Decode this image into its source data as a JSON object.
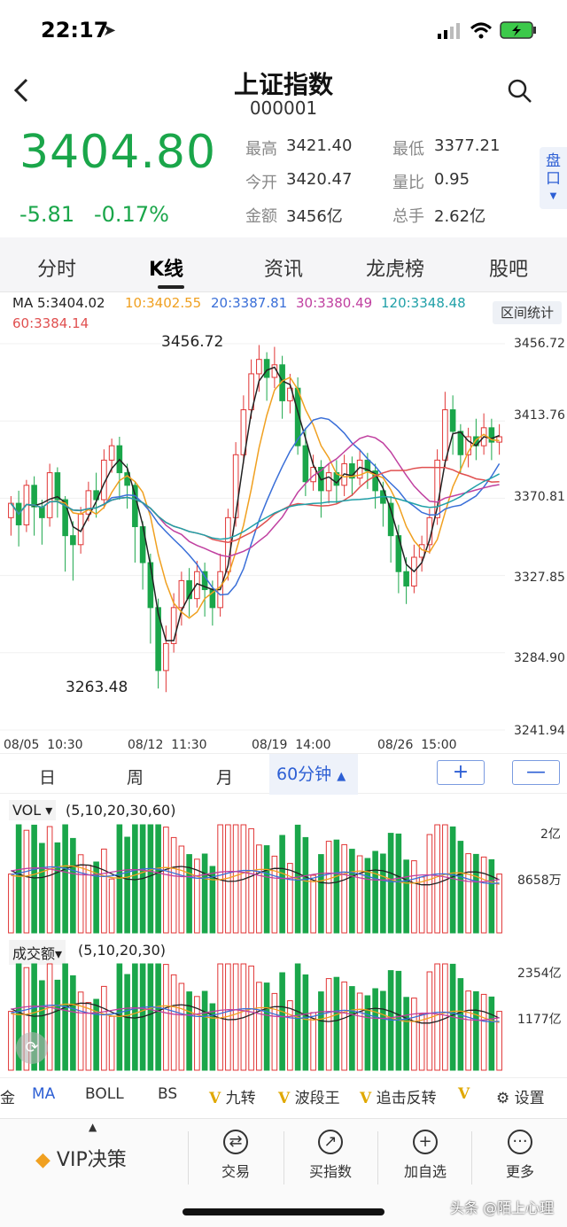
{
  "status": {
    "time": "22:17"
  },
  "header": {
    "title": "上证指数",
    "code": "000001"
  },
  "quote": {
    "price": "3404.80",
    "change": "-5.81",
    "pct": "-0.17%",
    "high_label": "最高",
    "high": "3421.40",
    "low_label": "最低",
    "low": "3377.21",
    "open_label": "今开",
    "open": "3420.47",
    "ratio_label": "量比",
    "ratio": "0.95",
    "amount_label": "金额",
    "amount": "3456亿",
    "turnover_label": "总手",
    "turnover": "2.62亿",
    "pan_label": "盘口"
  },
  "tabs": [
    "分时",
    "K线",
    "资讯",
    "龙虎榜",
    "股吧"
  ],
  "ma": {
    "ma5": "MA 5:3404.02",
    "ma10": "10:3402.55",
    "ma20": "20:3387.81",
    "ma30": "30:3380.49",
    "ma120": "120:3348.48",
    "ma60": "60:3384.14",
    "colors": {
      "ma5": "#222222",
      "ma10": "#f0a020",
      "ma20": "#3a6fd8",
      "ma30": "#c040a0",
      "ma120": "#20a0a8",
      "ma60": "#e05050"
    }
  },
  "range_stats": "区间统计",
  "kline": {
    "y_ticks": [
      "3456.72",
      "3413.76",
      "3370.81",
      "3327.85",
      "3284.90",
      "3241.94"
    ],
    "x_ticks": [
      "08/05  10:30",
      "08/12  11:30",
      "08/19  14:00",
      "08/26  15:00"
    ],
    "high_mark": "3456.72",
    "low_mark": "3263.48"
  },
  "periods": {
    "day": "日",
    "week": "周",
    "month": "月",
    "active": "60分钟"
  },
  "zoom": {
    "plus": "+",
    "minus": "—"
  },
  "vol": {
    "selector": "VOL ▾",
    "params": "(5,10,20,30,60)",
    "ticks": [
      "2亿",
      "8658万"
    ]
  },
  "amt": {
    "selector": "成交额▾",
    "params": "(5,10,20,30)",
    "ticks": [
      "2354亿",
      "1177亿"
    ]
  },
  "indicators": {
    "partial": "金",
    "ma": "MA",
    "boll": "BOLL",
    "bs": "BS",
    "jiuzhuan": "九转",
    "boduan": "波段王",
    "zhuiji": "追击反转",
    "settings": "设置",
    "v": "V"
  },
  "bottom": {
    "vip": "VIP决策",
    "trade": "交易",
    "buy_index": "买指数",
    "add_fav": "加自选",
    "more": "更多"
  },
  "watermark": "头条 @陌上心理",
  "chart_data": {
    "type": "candlestick",
    "y_ticks": [
      3456.72,
      3413.76,
      3370.81,
      3327.85,
      3284.9,
      3241.94
    ],
    "ylim": [
      3241.94,
      3456.72
    ],
    "x_ticks": [
      "08/05  10:30",
      "08/12  11:30",
      "08/19  14:00",
      "08/26  15:00"
    ],
    "candles": [
      [
        3360,
        3368,
        3350,
        3372
      ],
      [
        3368,
        3356,
        3344,
        3375
      ],
      [
        3356,
        3378,
        3352,
        3381
      ],
      [
        3378,
        3366,
        3350,
        3383
      ],
      [
        3366,
        3360,
        3345,
        3370
      ],
      [
        3360,
        3385,
        3355,
        3390
      ],
      [
        3385,
        3370,
        3360,
        3388
      ],
      [
        3370,
        3350,
        3330,
        3372
      ],
      [
        3350,
        3345,
        3325,
        3358
      ],
      [
        3345,
        3362,
        3340,
        3366
      ],
      [
        3362,
        3375,
        3358,
        3380
      ],
      [
        3375,
        3370,
        3360,
        3385
      ],
      [
        3370,
        3392,
        3365,
        3398
      ],
      [
        3392,
        3400,
        3385,
        3404
      ],
      [
        3400,
        3385,
        3370,
        3405
      ],
      [
        3385,
        3378,
        3365,
        3390
      ],
      [
        3378,
        3355,
        3335,
        3380
      ],
      [
        3355,
        3335,
        3320,
        3358
      ],
      [
        3335,
        3310,
        3290,
        3340
      ],
      [
        3310,
        3275,
        3265,
        3315
      ],
      [
        3275,
        3290,
        3263,
        3300
      ],
      [
        3290,
        3310,
        3285,
        3318
      ],
      [
        3310,
        3325,
        3300,
        3330
      ],
      [
        3325,
        3315,
        3305,
        3332
      ],
      [
        3315,
        3330,
        3310,
        3336
      ],
      [
        3330,
        3320,
        3305,
        3335
      ],
      [
        3320,
        3310,
        3300,
        3325
      ],
      [
        3310,
        3330,
        3305,
        3340
      ],
      [
        3330,
        3360,
        3325,
        3365
      ],
      [
        3360,
        3395,
        3355,
        3402
      ],
      [
        3395,
        3420,
        3390,
        3428
      ],
      [
        3420,
        3440,
        3415,
        3448
      ],
      [
        3440,
        3448,
        3430,
        3456
      ],
      [
        3448,
        3438,
        3425,
        3452
      ],
      [
        3438,
        3445,
        3432,
        3455
      ],
      [
        3445,
        3425,
        3415,
        3450
      ],
      [
        3425,
        3432,
        3418,
        3440
      ],
      [
        3432,
        3400,
        3395,
        3438
      ],
      [
        3400,
        3380,
        3372,
        3410
      ],
      [
        3380,
        3388,
        3375,
        3395
      ],
      [
        3388,
        3375,
        3360,
        3392
      ],
      [
        3375,
        3385,
        3368,
        3390
      ],
      [
        3385,
        3378,
        3368,
        3392
      ],
      [
        3378,
        3390,
        3372,
        3395
      ],
      [
        3390,
        3382,
        3372,
        3394
      ],
      [
        3382,
        3392,
        3378,
        3398
      ],
      [
        3392,
        3386,
        3376,
        3396
      ],
      [
        3386,
        3375,
        3365,
        3390
      ],
      [
        3375,
        3368,
        3355,
        3380
      ],
      [
        3368,
        3350,
        3335,
        3372
      ],
      [
        3350,
        3330,
        3318,
        3356
      ],
      [
        3330,
        3322,
        3312,
        3338
      ],
      [
        3322,
        3338,
        3318,
        3345
      ],
      [
        3338,
        3345,
        3330,
        3350
      ],
      [
        3345,
        3360,
        3340,
        3365
      ],
      [
        3360,
        3392,
        3356,
        3398
      ],
      [
        3392,
        3420,
        3388,
        3430
      ],
      [
        3420,
        3408,
        3395,
        3428
      ],
      [
        3408,
        3395,
        3385,
        3412
      ],
      [
        3395,
        3405,
        3388,
        3410
      ],
      [
        3405,
        3400,
        3392,
        3415
      ],
      [
        3400,
        3410,
        3395,
        3418
      ],
      [
        3410,
        3402,
        3392,
        3415
      ],
      [
        3402,
        3405,
        3395,
        3412
      ]
    ]
  }
}
